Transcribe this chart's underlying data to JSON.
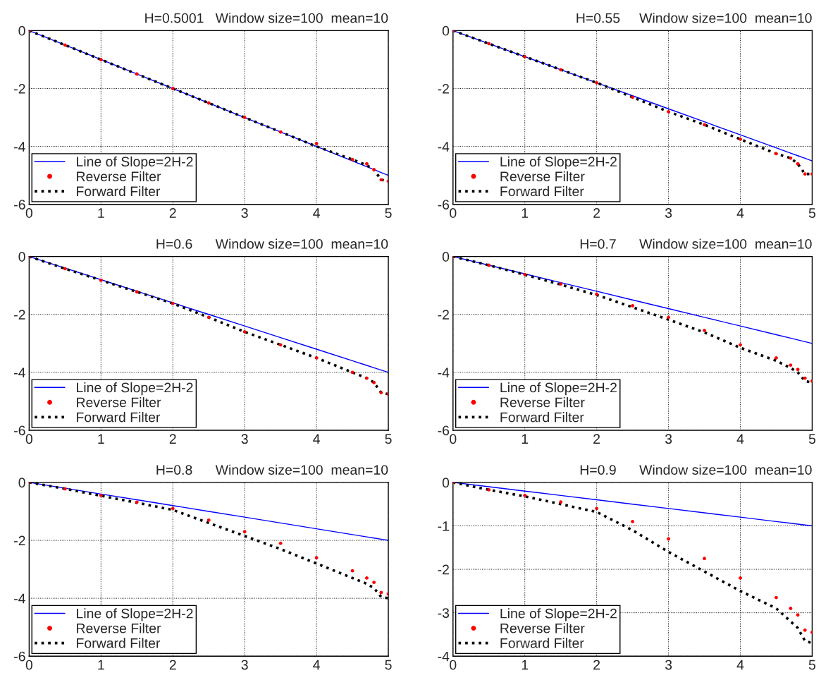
{
  "chart_data": [
    {
      "type": "line",
      "title": "H=0.5001   Window size=100  mean=10",
      "xlim": [
        0,
        5
      ],
      "xticks": [
        0,
        1,
        2,
        3,
        4,
        5
      ],
      "ylim": [
        -6,
        0
      ],
      "yticks": [
        -6,
        -4,
        -2,
        0
      ],
      "grid": true,
      "legend": "bottom left",
      "x": [
        0,
        0.5,
        1,
        1.5,
        2,
        2.5,
        3,
        3.5,
        4,
        4.5,
        4.7,
        4.8,
        4.9,
        5
      ],
      "series": [
        {
          "name": "Line of Slope=2H-2",
          "type": "line",
          "color": "#0000ff",
          "line_style": "solid",
          "values": [
            0,
            -0.5,
            -1,
            -1.5,
            -2,
            -2.5,
            -3,
            -3.5,
            -4,
            -4.5,
            -4.7,
            -4.8,
            -4.9,
            -5
          ]
        },
        {
          "name": "Reverse Filter",
          "type": "scatter",
          "color": "#ff0000",
          "marker": "circle",
          "values": [
            0,
            -0.5,
            -1,
            -1.5,
            -2,
            -2.5,
            -3,
            -3.5,
            -3.9,
            -4.45,
            -4.6,
            -4.8,
            -5.15,
            -5.2
          ]
        },
        {
          "name": "Forward Filter",
          "type": "line",
          "color": "#000000",
          "line_style": "dotted",
          "values": [
            0,
            -0.5,
            -1,
            -1.5,
            -2,
            -2.5,
            -3,
            -3.5,
            -4.0,
            -4.45,
            -4.65,
            -4.8,
            -5.15,
            -5.2
          ]
        }
      ]
    },
    {
      "type": "line",
      "title": "H=0.55     Window size=100  mean=10",
      "xlim": [
        0,
        5
      ],
      "xticks": [
        0,
        1,
        2,
        3,
        4,
        5
      ],
      "ylim": [
        -6,
        0
      ],
      "yticks": [
        -6,
        -4,
        -2,
        0
      ],
      "grid": true,
      "legend": "bottom left",
      "x": [
        0,
        0.5,
        1,
        1.5,
        2,
        2.5,
        3,
        3.5,
        4,
        4.5,
        4.7,
        4.8,
        4.9,
        5
      ],
      "series": [
        {
          "name": "Line of Slope=2H-2",
          "type": "line",
          "color": "#0000ff",
          "line_style": "solid",
          "values": [
            0,
            -0.45,
            -0.9,
            -1.35,
            -1.8,
            -2.25,
            -2.7,
            -3.15,
            -3.6,
            -4.05,
            -4.23,
            -4.32,
            -4.41,
            -4.5
          ]
        },
        {
          "name": "Reverse Filter",
          "type": "scatter",
          "color": "#ff0000",
          "marker": "circle",
          "values": [
            0,
            -0.45,
            -0.9,
            -1.35,
            -1.8,
            -2.3,
            -2.8,
            -3.25,
            -3.75,
            -4.25,
            -4.4,
            -4.6,
            -4.95,
            -4.95
          ]
        },
        {
          "name": "Forward Filter",
          "type": "line",
          "color": "#000000",
          "line_style": "dotted",
          "values": [
            0,
            -0.45,
            -0.9,
            -1.35,
            -1.8,
            -2.3,
            -2.8,
            -3.25,
            -3.75,
            -4.25,
            -4.4,
            -4.6,
            -4.95,
            -4.95
          ]
        }
      ]
    },
    {
      "type": "line",
      "title": "H=0.6      Window size=100  mean=10",
      "xlim": [
        0,
        5
      ],
      "xticks": [
        0,
        1,
        2,
        3,
        4,
        5
      ],
      "ylim": [
        -6,
        0
      ],
      "yticks": [
        -6,
        -4,
        -2,
        0
      ],
      "grid": true,
      "legend": "bottom left",
      "x": [
        0,
        0.5,
        1,
        1.5,
        2,
        2.5,
        3,
        3.5,
        4,
        4.5,
        4.7,
        4.8,
        4.9,
        5
      ],
      "series": [
        {
          "name": "Line of Slope=2H-2",
          "type": "line",
          "color": "#0000ff",
          "line_style": "solid",
          "values": [
            0,
            -0.4,
            -0.8,
            -1.2,
            -1.6,
            -2,
            -2.4,
            -2.8,
            -3.2,
            -3.6,
            -3.76,
            -3.84,
            -3.92,
            -4
          ]
        },
        {
          "name": "Reverse Filter",
          "type": "scatter",
          "color": "#ff0000",
          "marker": "circle",
          "values": [
            0,
            -0.42,
            -0.82,
            -1.22,
            -1.62,
            -2.1,
            -2.6,
            -3.05,
            -3.5,
            -4.0,
            -4.2,
            -4.35,
            -4.7,
            -4.75
          ]
        },
        {
          "name": "Forward Filter",
          "type": "line",
          "color": "#000000",
          "line_style": "dotted",
          "values": [
            0,
            -0.42,
            -0.82,
            -1.22,
            -1.62,
            -2.1,
            -2.6,
            -3.05,
            -3.5,
            -4.0,
            -4.2,
            -4.35,
            -4.7,
            -4.75
          ]
        }
      ]
    },
    {
      "type": "line",
      "title": "H=0.7      Window size=100  mean=10",
      "xlim": [
        0,
        5
      ],
      "xticks": [
        0,
        1,
        2,
        3,
        4,
        5
      ],
      "ylim": [
        -6,
        0
      ],
      "yticks": [
        -6,
        -4,
        -2,
        0
      ],
      "grid": true,
      "legend": "bottom left",
      "x": [
        0,
        0.5,
        1,
        1.5,
        2,
        2.5,
        3,
        3.5,
        4,
        4.5,
        4.7,
        4.8,
        4.9,
        5
      ],
      "series": [
        {
          "name": "Line of Slope=2H-2",
          "type": "line",
          "color": "#0000ff",
          "line_style": "solid",
          "values": [
            0,
            -0.3,
            -0.6,
            -0.9,
            -1.2,
            -1.5,
            -1.8,
            -2.1,
            -2.4,
            -2.7,
            -2.82,
            -2.88,
            -2.94,
            -3
          ]
        },
        {
          "name": "Reverse Filter",
          "type": "scatter",
          "color": "#ff0000",
          "marker": "circle",
          "values": [
            0,
            -0.3,
            -0.62,
            -0.95,
            -1.3,
            -1.7,
            -2.1,
            -2.55,
            -3.05,
            -3.5,
            -3.75,
            -3.9,
            -4.2,
            -4.3
          ]
        },
        {
          "name": "Forward Filter",
          "type": "line",
          "color": "#000000",
          "line_style": "dotted",
          "values": [
            0,
            -0.3,
            -0.63,
            -0.97,
            -1.33,
            -1.75,
            -2.18,
            -2.62,
            -3.15,
            -3.6,
            -3.85,
            -4.0,
            -4.3,
            -4.35
          ]
        }
      ]
    },
    {
      "type": "line",
      "title": "H=0.8      Window size=100  mean=10",
      "xlim": [
        0,
        5
      ],
      "xticks": [
        0,
        1,
        2,
        3,
        4,
        5
      ],
      "ylim": [
        -6,
        0
      ],
      "yticks": [
        -6,
        -4,
        -2,
        0
      ],
      "grid": true,
      "legend": "bottom left",
      "x": [
        0,
        0.5,
        1,
        1.5,
        2,
        2.5,
        3,
        3.5,
        4,
        4.5,
        4.7,
        4.8,
        4.9,
        5
      ],
      "series": [
        {
          "name": "Line of Slope=2H-2",
          "type": "line",
          "color": "#0000ff",
          "line_style": "solid",
          "values": [
            0,
            -0.2,
            -0.4,
            -0.6,
            -0.8,
            -1,
            -1.2,
            -1.4,
            -1.6,
            -1.8,
            -1.88,
            -1.92,
            -1.96,
            -2
          ]
        },
        {
          "name": "Reverse Filter",
          "type": "scatter",
          "color": "#ff0000",
          "marker": "circle",
          "values": [
            0,
            -0.22,
            -0.45,
            -0.68,
            -0.9,
            -1.3,
            -1.7,
            -2.1,
            -2.6,
            -3.05,
            -3.3,
            -3.45,
            -3.8,
            -3.85
          ]
        },
        {
          "name": "Forward Filter",
          "type": "line",
          "color": "#000000",
          "line_style": "dotted",
          "values": [
            0,
            -0.22,
            -0.46,
            -0.7,
            -0.95,
            -1.4,
            -1.85,
            -2.3,
            -2.8,
            -3.3,
            -3.5,
            -3.65,
            -3.95,
            -4.0
          ]
        }
      ]
    },
    {
      "type": "line",
      "title": "H=0.9      Window size=100  mean=10",
      "xlim": [
        0,
        5
      ],
      "xticks": [
        0,
        1,
        2,
        3,
        4,
        5
      ],
      "ylim": [
        -4,
        0
      ],
      "yticks": [
        -4,
        -3,
        -2,
        -1,
        0
      ],
      "grid": true,
      "legend": "bottom left",
      "x": [
        0,
        0.5,
        1,
        1.5,
        2,
        2.5,
        3,
        3.5,
        4,
        4.5,
        4.7,
        4.8,
        4.9,
        5
      ],
      "series": [
        {
          "name": "Line of Slope=2H-2",
          "type": "line",
          "color": "#0000ff",
          "line_style": "solid",
          "values": [
            0,
            -0.1,
            -0.2,
            -0.3,
            -0.4,
            -0.5,
            -0.6,
            -0.7,
            -0.8,
            -0.9,
            -0.94,
            -0.96,
            -0.98,
            -1
          ]
        },
        {
          "name": "Reverse Filter",
          "type": "scatter",
          "color": "#ff0000",
          "marker": "circle",
          "values": [
            0,
            -0.17,
            -0.3,
            -0.45,
            -0.6,
            -0.9,
            -1.3,
            -1.75,
            -2.2,
            -2.65,
            -2.9,
            -3.05,
            -3.4,
            -3.45
          ]
        },
        {
          "name": "Forward Filter",
          "type": "line",
          "color": "#000000",
          "line_style": "dotted",
          "values": [
            0,
            -0.17,
            -0.32,
            -0.5,
            -0.68,
            -1.1,
            -1.6,
            -2.05,
            -2.5,
            -2.9,
            -3.2,
            -3.35,
            -3.65,
            -3.7
          ]
        }
      ]
    }
  ]
}
